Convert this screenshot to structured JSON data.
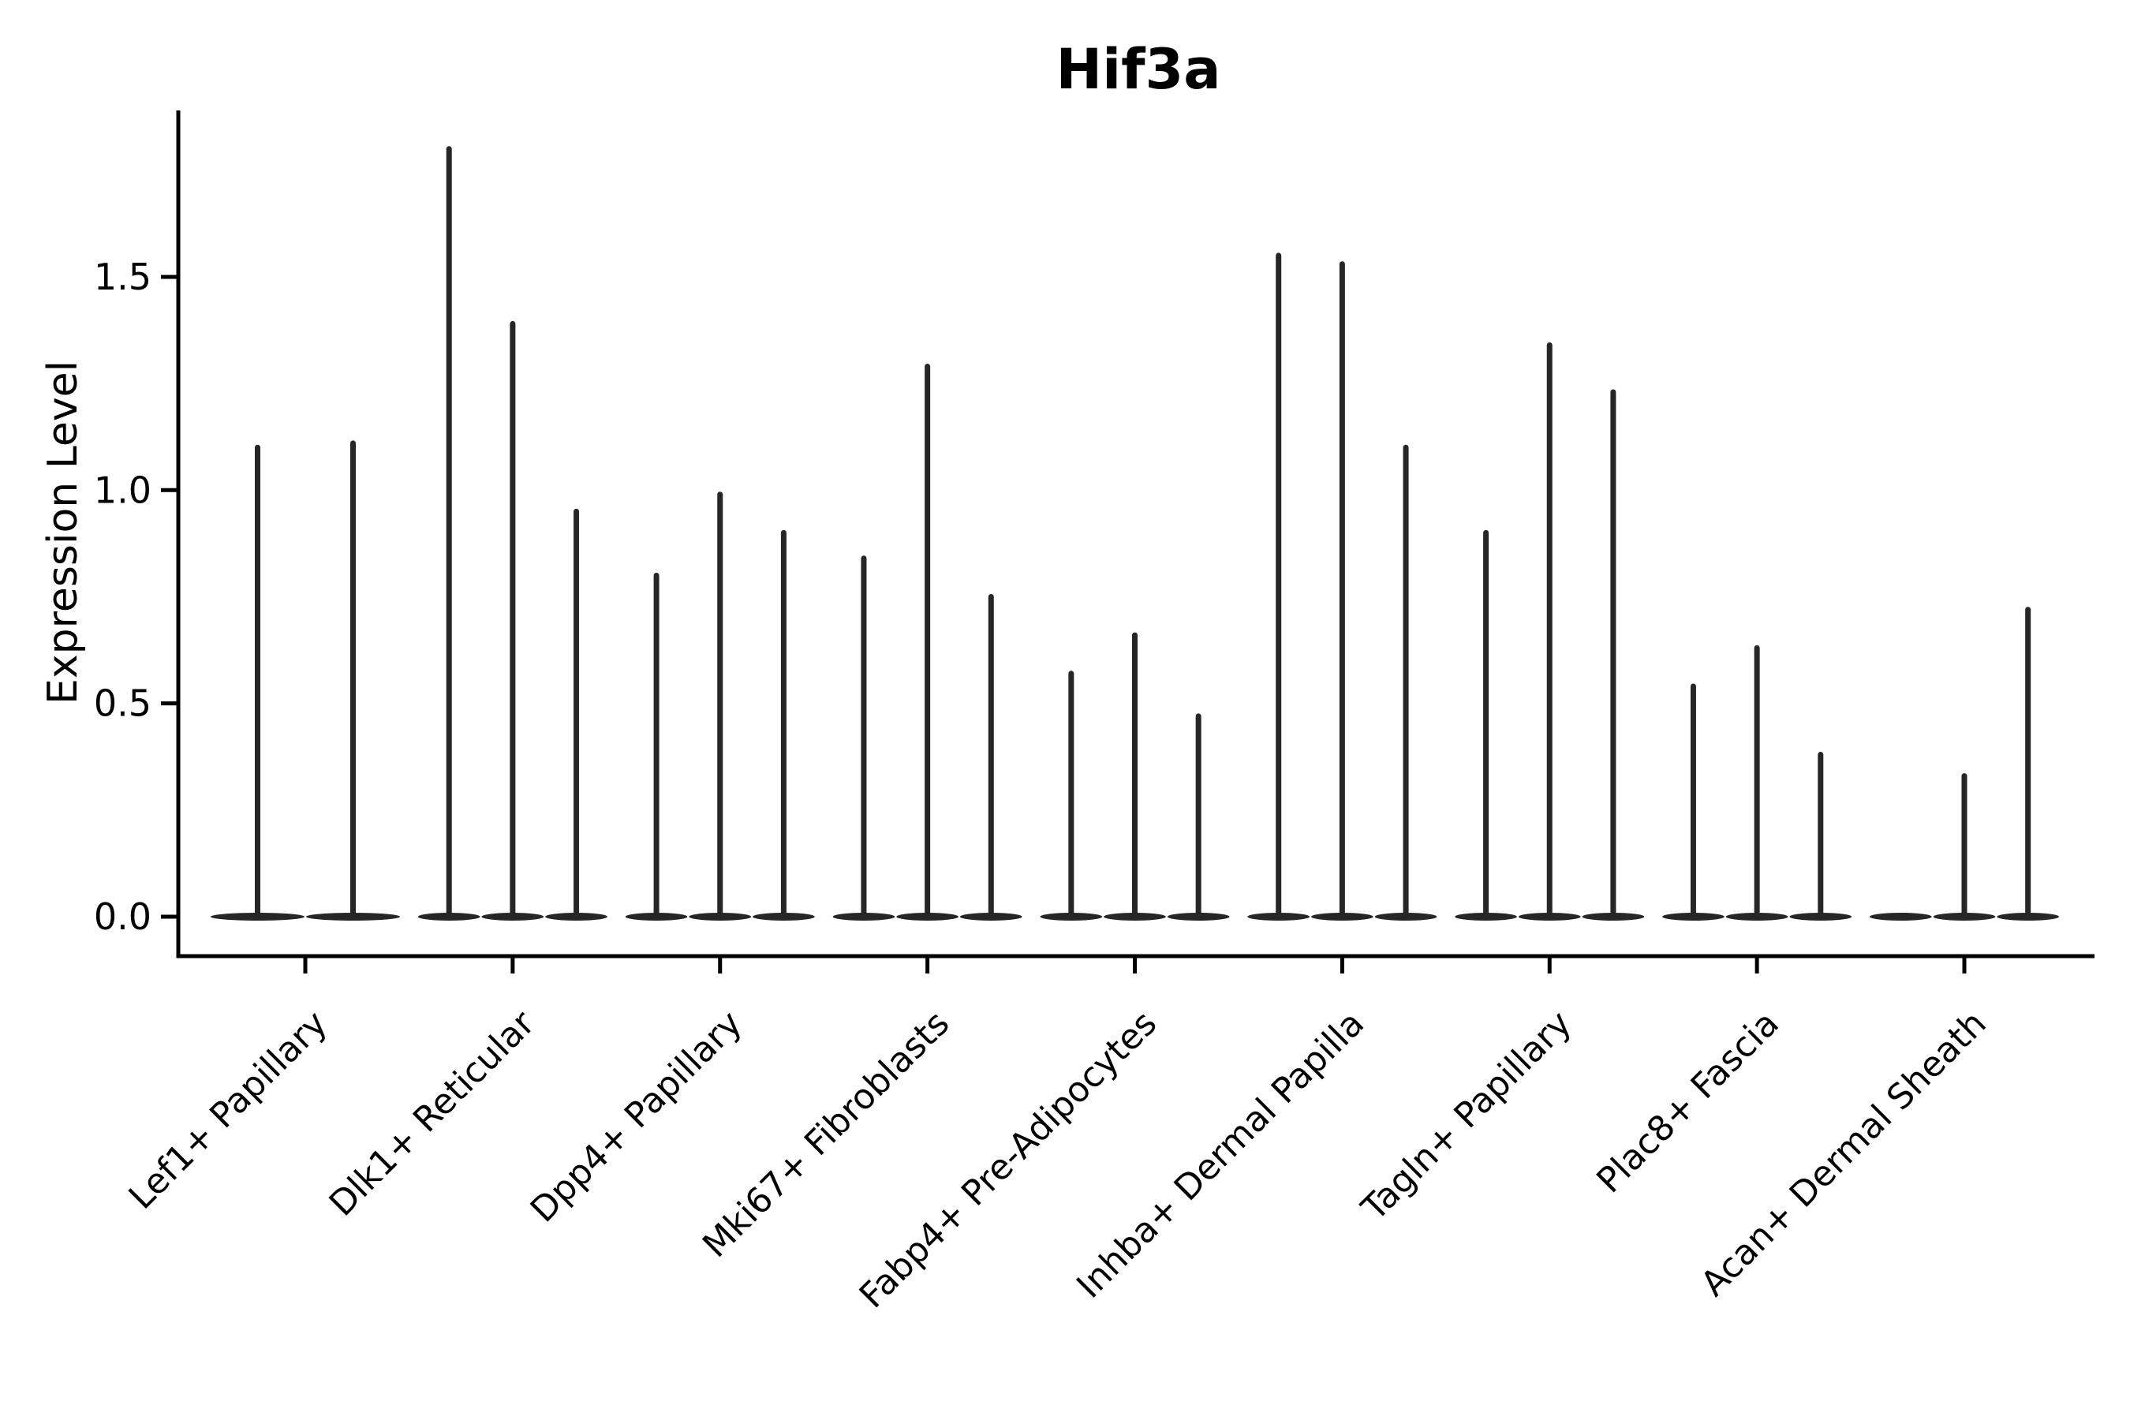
{
  "figure": {
    "background": "#ffffff"
  },
  "chart_data": {
    "type": "violin",
    "title": "Hif3a",
    "ylabel": "Expression Level",
    "xlabel": "",
    "legend": "none",
    "grid": false,
    "ylim": [
      -0.09,
      1.89
    ],
    "yticks": [
      "0.0",
      "0.5",
      "1.0",
      "1.5"
    ],
    "ytick_values": [
      0.0,
      0.5,
      1.0,
      1.5
    ],
    "baseline_value": 0.0,
    "note": "Collapsed violin plot: each violin is a flat body at 0 with a thin spike up to its maximum expression value; a max of 0 means a flat violin with no spike.",
    "categories": [
      "Lef1+ Papillary",
      "Dlk1+ Reticular",
      "Dpp4+ Papillary",
      "Mki67+ Fibroblasts",
      "Fabp4+ Pre-Adipocytes",
      "Inhba+ Dermal Papilla",
      "Tagln+ Papillary",
      "Plac8+ Fascia",
      "Acan+ Dermal Sheath"
    ],
    "groups": [
      {
        "label": "Lef1+ Papillary",
        "violin_maxima": [
          1.1,
          1.11
        ]
      },
      {
        "label": "Dlk1+ Reticular",
        "violin_maxima": [
          1.8,
          1.39,
          0.95
        ]
      },
      {
        "label": "Dpp4+ Papillary",
        "violin_maxima": [
          0.8,
          0.99,
          0.9
        ]
      },
      {
        "label": "Mki67+ Fibroblasts",
        "violin_maxima": [
          0.84,
          1.29,
          0.75
        ]
      },
      {
        "label": "Fabp4+ Pre-Adipocytes",
        "violin_maxima": [
          0.57,
          0.66,
          0.47
        ]
      },
      {
        "label": "Inhba+ Dermal Papilla",
        "violin_maxima": [
          1.55,
          1.53,
          1.1
        ]
      },
      {
        "label": "Tagln+ Papillary",
        "violin_maxima": [
          0.9,
          1.34,
          1.23
        ]
      },
      {
        "label": "Plac8+ Fascia",
        "violin_maxima": [
          0.54,
          0.63,
          0.38
        ]
      },
      {
        "label": "Acan+ Dermal Sheath",
        "violin_maxima": [
          0.0,
          0.33,
          0.72
        ]
      }
    ],
    "colors": {
      "axis": "#000000",
      "text": "#000000",
      "violin": "#262626"
    }
  }
}
